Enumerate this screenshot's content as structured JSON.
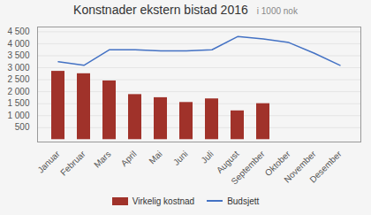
{
  "chart_data": {
    "type": "bar",
    "title": "Konstnader ekstern bistad 2016",
    "subtitle": "i 1000 nok",
    "categories": [
      "Januar",
      "Februar",
      "Mars",
      "April",
      "Mai",
      "Juni",
      "Juli",
      "August",
      "September",
      "Oktober",
      "November",
      "Desember"
    ],
    "series": [
      {
        "name": "Virkelig kostnad",
        "type": "bar",
        "color": "#a0322a",
        "values": [
          2850,
          2750,
          2450,
          1880,
          1750,
          1550,
          1700,
          1200,
          1500,
          null,
          null,
          null
        ]
      },
      {
        "name": "Budsjett",
        "type": "line",
        "color": "#4472c4",
        "values": [
          3250,
          3100,
          3750,
          3750,
          3700,
          3700,
          3750,
          4300,
          4200,
          4050,
          3600,
          3100
        ]
      }
    ],
    "ylim": [
      -100,
      4700
    ],
    "yticks": [
      500,
      {
        "value": 1000,
        "label": "1 000"
      },
      {
        "value": 1500,
        "label": "1 500"
      },
      {
        "value": 2000,
        "label": "2 000"
      },
      {
        "value": 2500,
        "label": "2 500"
      },
      {
        "value": 3000,
        "label": "3 000"
      },
      {
        "value": 3500,
        "label": "3 500"
      },
      {
        "value": 4000,
        "label": "4 000"
      },
      {
        "value": 4500,
        "label": "4 500"
      }
    ],
    "grid": true,
    "legend": "bottom"
  }
}
